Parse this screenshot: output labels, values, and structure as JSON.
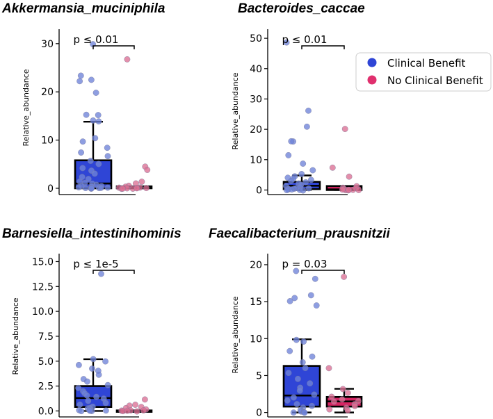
{
  "colors": {
    "clinical_benefit": "#2f45d6",
    "no_clinical_benefit": "#d62563",
    "cb_point": "#6e83d8",
    "ncb_point": "#db6f93"
  },
  "legend": {
    "items": [
      {
        "label": "Clinical Benefit",
        "color": "#2f45d6"
      },
      {
        "label": "No Clinical Benefit",
        "color": "#e0306e"
      }
    ]
  },
  "chart_data": [
    {
      "type": "box",
      "title": "Akkermansia_muciniphila",
      "ylabel": "Relative_abundance",
      "ylim": [
        -1.3,
        33
      ],
      "yticks": [
        "0",
        "10",
        "20",
        "30"
      ],
      "pvalue": "p ≤ 0.01",
      "groups": [
        {
          "name": "Clinical Benefit",
          "box": {
            "q1": 0,
            "median": 1,
            "q3": 5.8,
            "whisker_low": 0,
            "whisker_high": 13.8
          },
          "points": [
            29.9,
            23.3,
            22.5,
            22.3,
            19.8,
            15.3,
            15.1,
            14.0,
            13.8,
            10.4,
            9.6,
            8.5,
            7.4,
            6.6,
            5.7,
            5.0,
            4.3,
            3.6,
            3.0,
            2.4,
            1.9,
            1.5,
            1.2,
            0.9,
            0.7,
            0.5,
            0.4,
            0.3,
            0.2,
            0.1,
            0.1,
            0.05,
            0.0,
            0.0,
            0.0,
            0.0
          ]
        },
        {
          "name": "No Clinical Benefit",
          "box": {
            "q1": 0,
            "median": 0.1,
            "q3": 0.4,
            "whisker_low": 0,
            "whisker_high": 0.4
          },
          "points": [
            26.8,
            4.6,
            3.9,
            1.4,
            0.9,
            0.5,
            0.3,
            0.2,
            0.1,
            0.1,
            0.05,
            0.0,
            0.0,
            0.0,
            0.0,
            0.0
          ]
        }
      ]
    },
    {
      "type": "box",
      "title": "Bacteroides_caccae",
      "ylabel": "Relative_abundance",
      "ylim": [
        -1.5,
        53
      ],
      "yticks": [
        "0",
        "10",
        "20",
        "30",
        "40",
        "50"
      ],
      "pvalue": "p ≤ 0.01",
      "groups": [
        {
          "name": "Clinical Benefit",
          "box": {
            "q1": 0.3,
            "median": 1.4,
            "q3": 2.7,
            "whisker_low": 0,
            "whisker_high": 4.8
          },
          "points": [
            48.5,
            26.2,
            21.0,
            16.1,
            15.9,
            11.3,
            8.8,
            6.4,
            5.1,
            4.5,
            4.0,
            3.6,
            3.2,
            2.8,
            2.4,
            2.0,
            1.7,
            1.4,
            1.1,
            0.8,
            0.6,
            0.4,
            0.3,
            0.2,
            0.1,
            0.0,
            0.0,
            0.0
          ]
        },
        {
          "name": "No Clinical Benefit",
          "box": {
            "q1": 0,
            "median": 0.2,
            "q3": 1.3,
            "whisker_low": 0,
            "whisker_high": 1.3
          },
          "points": [
            20.1,
            7.5,
            4.4,
            1.3,
            0.9,
            0.6,
            0.4,
            0.2,
            0.1,
            0.0,
            0.0,
            0.0,
            0.0
          ]
        }
      ]
    },
    {
      "type": "box",
      "title": "Barnesiella_intestinihominis",
      "ylabel": "Relative_abundance",
      "ylim": [
        -0.6,
        15.8
      ],
      "yticks": [
        "0.0",
        "2.5",
        "5.0",
        "7.5",
        "10.0",
        "12.5",
        "15.0"
      ],
      "pvalue": "p ≤ 1e-5",
      "groups": [
        {
          "name": "Clinical Benefit",
          "box": {
            "q1": 0.4,
            "median": 1.3,
            "q3": 2.5,
            "whisker_low": 0,
            "whisker_high": 5.2
          },
          "points": [
            13.8,
            5.2,
            5.0,
            4.6,
            4.3,
            4.0,
            3.6,
            3.2,
            2.9,
            2.6,
            2.3,
            2.0,
            1.8,
            1.6,
            1.4,
            1.2,
            1.0,
            0.8,
            0.6,
            0.4,
            0.3,
            0.2,
            0.1,
            0.0,
            0.0,
            0.0,
            0.0,
            0.0
          ]
        },
        {
          "name": "No Clinical Benefit",
          "box": {
            "q1": 0,
            "median": 0.02,
            "q3": 0.05,
            "whisker_low": 0,
            "whisker_high": 0.05
          },
          "points": [
            1.1,
            0.6,
            0.5,
            0.4,
            0.3,
            0.2,
            0.1,
            0.05,
            0.0,
            0.0,
            0.0,
            0.0
          ]
        }
      ]
    },
    {
      "type": "box",
      "title": "Faecalibacterium_prausnitzii",
      "ylabel": "Relative_abundance",
      "ylim": [
        -0.6,
        21.5
      ],
      "yticks": [
        "0",
        "5",
        "10",
        "15",
        "20"
      ],
      "pvalue": "p = 0.03",
      "groups": [
        {
          "name": "Clinical Benefit",
          "box": {
            "q1": 0.8,
            "median": 2.3,
            "q3": 6.3,
            "whisker_low": 0,
            "whisker_high": 9.9
          },
          "points": [
            19.1,
            18.1,
            15.9,
            15.5,
            15.1,
            14.5,
            9.8,
            9.6,
            8.3,
            7.6,
            6.8,
            6.0,
            5.3,
            4.6,
            4.0,
            3.4,
            2.9,
            2.4,
            2.0,
            1.6,
            1.2,
            0.9,
            0.6,
            0.3,
            0.1,
            0.0,
            0.0,
            0.0
          ]
        },
        {
          "name": "No Clinical Benefit",
          "box": {
            "q1": 0.8,
            "median": 1.5,
            "q3": 2.1,
            "whisker_low": 0,
            "whisker_high": 3.2
          },
          "points": [
            18.3,
            6.0,
            3.1,
            2.6,
            2.1,
            1.8,
            1.6,
            1.4,
            1.2,
            0.9,
            0.7,
            0.4,
            0.2
          ]
        }
      ]
    }
  ]
}
